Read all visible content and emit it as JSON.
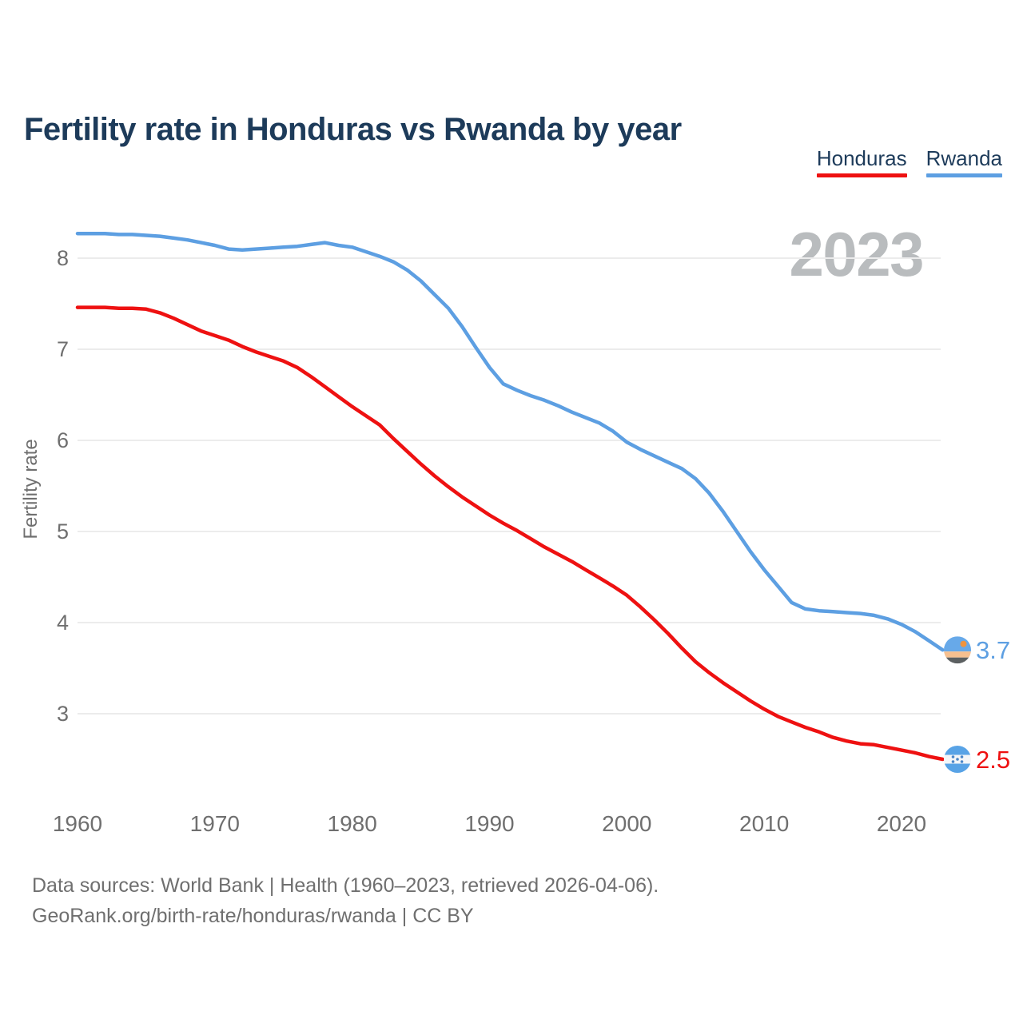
{
  "title": "Fertility rate in Honduras vs Rwanda by year",
  "legend": [
    {
      "label": "Honduras",
      "color": "#ee1111"
    },
    {
      "label": "Rwanda",
      "color": "#5d9fe2"
    }
  ],
  "watermark": "2023",
  "footer": {
    "line1": "Data sources: World Bank | Health (1960–2023, retrieved 2026-04-06).",
    "line2": "GeoRank.org/birth-rate/honduras/rwanda | CC BY"
  },
  "colors": {
    "title": "#1d3b5a",
    "axis_text": "#6f6f6f",
    "grid": "#ececec",
    "watermark": "#b9bcbe",
    "honduras": "#ee1111",
    "rwanda": "#5d9fe2",
    "flag_honduras": {
      "band": "#58a3e6",
      "white": "#f4f6f8",
      "star": "#4a86c8"
    },
    "flag_rwanda": {
      "blue": "#67a9e9",
      "yellow": "#f7c08f",
      "green": "#5c6061",
      "sun": "#ef9440"
    }
  },
  "chart_data": {
    "type": "line",
    "title": "Fertility rate in Honduras vs Rwanda by year",
    "xlabel": "",
    "ylabel": "Fertility rate",
    "xlim": [
      1960,
      2023
    ],
    "ylim": [
      2.3,
      8.6
    ],
    "grid": "horizontal",
    "legend_position": "top-right",
    "xticks": [
      1960,
      1970,
      1980,
      1990,
      2000,
      2010,
      2020
    ],
    "yticks": [
      3,
      4,
      5,
      6,
      7,
      8
    ],
    "annotation_year": "2023",
    "series": [
      {
        "name": "Rwanda",
        "color": "#5d9fe2",
        "end_label": "3.7",
        "flag": "rwanda",
        "points": [
          [
            1960,
            8.27
          ],
          [
            1961,
            8.27
          ],
          [
            1962,
            8.27
          ],
          [
            1963,
            8.26
          ],
          [
            1964,
            8.26
          ],
          [
            1965,
            8.25
          ],
          [
            1966,
            8.24
          ],
          [
            1967,
            8.22
          ],
          [
            1968,
            8.2
          ],
          [
            1969,
            8.17
          ],
          [
            1970,
            8.14
          ],
          [
            1971,
            8.1
          ],
          [
            1972,
            8.09
          ],
          [
            1973,
            8.1
          ],
          [
            1974,
            8.11
          ],
          [
            1975,
            8.12
          ],
          [
            1976,
            8.13
          ],
          [
            1977,
            8.15
          ],
          [
            1978,
            8.17
          ],
          [
            1979,
            8.14
          ],
          [
            1980,
            8.12
          ],
          [
            1981,
            8.07
          ],
          [
            1982,
            8.02
          ],
          [
            1983,
            7.96
          ],
          [
            1984,
            7.87
          ],
          [
            1985,
            7.75
          ],
          [
            1986,
            7.6
          ],
          [
            1987,
            7.45
          ],
          [
            1988,
            7.25
          ],
          [
            1989,
            7.02
          ],
          [
            1990,
            6.8
          ],
          [
            1991,
            6.62
          ],
          [
            1992,
            6.55
          ],
          [
            1993,
            6.49
          ],
          [
            1994,
            6.44
          ],
          [
            1995,
            6.38
          ],
          [
            1996,
            6.31
          ],
          [
            1997,
            6.25
          ],
          [
            1998,
            6.19
          ],
          [
            1999,
            6.1
          ],
          [
            2000,
            5.98
          ],
          [
            2001,
            5.9
          ],
          [
            2002,
            5.83
          ],
          [
            2003,
            5.76
          ],
          [
            2004,
            5.69
          ],
          [
            2005,
            5.58
          ],
          [
            2006,
            5.42
          ],
          [
            2007,
            5.22
          ],
          [
            2008,
            5.0
          ],
          [
            2009,
            4.78
          ],
          [
            2010,
            4.58
          ],
          [
            2011,
            4.4
          ],
          [
            2012,
            4.22
          ],
          [
            2013,
            4.15
          ],
          [
            2014,
            4.13
          ],
          [
            2015,
            4.12
          ],
          [
            2016,
            4.11
          ],
          [
            2017,
            4.1
          ],
          [
            2018,
            4.08
          ],
          [
            2019,
            4.04
          ],
          [
            2020,
            3.98
          ],
          [
            2021,
            3.9
          ],
          [
            2022,
            3.8
          ],
          [
            2023,
            3.7
          ]
        ]
      },
      {
        "name": "Honduras",
        "color": "#ee1111",
        "end_label": "2.5",
        "flag": "honduras",
        "points": [
          [
            1960,
            7.46
          ],
          [
            1961,
            7.46
          ],
          [
            1962,
            7.46
          ],
          [
            1963,
            7.45
          ],
          [
            1964,
            7.45
          ],
          [
            1965,
            7.44
          ],
          [
            1966,
            7.4
          ],
          [
            1967,
            7.34
          ],
          [
            1968,
            7.27
          ],
          [
            1969,
            7.2
          ],
          [
            1970,
            7.15
          ],
          [
            1971,
            7.1
          ],
          [
            1972,
            7.03
          ],
          [
            1973,
            6.97
          ],
          [
            1974,
            6.92
          ],
          [
            1975,
            6.87
          ],
          [
            1976,
            6.8
          ],
          [
            1977,
            6.7
          ],
          [
            1978,
            6.59
          ],
          [
            1979,
            6.48
          ],
          [
            1980,
            6.37
          ],
          [
            1981,
            6.27
          ],
          [
            1982,
            6.17
          ],
          [
            1983,
            6.02
          ],
          [
            1984,
            5.88
          ],
          [
            1985,
            5.74
          ],
          [
            1986,
            5.61
          ],
          [
            1987,
            5.49
          ],
          [
            1988,
            5.38
          ],
          [
            1989,
            5.28
          ],
          [
            1990,
            5.18
          ],
          [
            1991,
            5.09
          ],
          [
            1992,
            5.01
          ],
          [
            1993,
            4.92
          ],
          [
            1994,
            4.83
          ],
          [
            1995,
            4.75
          ],
          [
            1996,
            4.67
          ],
          [
            1997,
            4.58
          ],
          [
            1998,
            4.49
          ],
          [
            1999,
            4.4
          ],
          [
            2000,
            4.3
          ],
          [
            2001,
            4.17
          ],
          [
            2002,
            4.03
          ],
          [
            2003,
            3.88
          ],
          [
            2004,
            3.72
          ],
          [
            2005,
            3.57
          ],
          [
            2006,
            3.45
          ],
          [
            2007,
            3.34
          ],
          [
            2008,
            3.24
          ],
          [
            2009,
            3.14
          ],
          [
            2010,
            3.05
          ],
          [
            2011,
            2.97
          ],
          [
            2012,
            2.91
          ],
          [
            2013,
            2.85
          ],
          [
            2014,
            2.8
          ],
          [
            2015,
            2.74
          ],
          [
            2016,
            2.7
          ],
          [
            2017,
            2.67
          ],
          [
            2018,
            2.66
          ],
          [
            2019,
            2.63
          ],
          [
            2020,
            2.6
          ],
          [
            2021,
            2.57
          ],
          [
            2022,
            2.53
          ],
          [
            2023,
            2.5
          ]
        ]
      }
    ]
  }
}
